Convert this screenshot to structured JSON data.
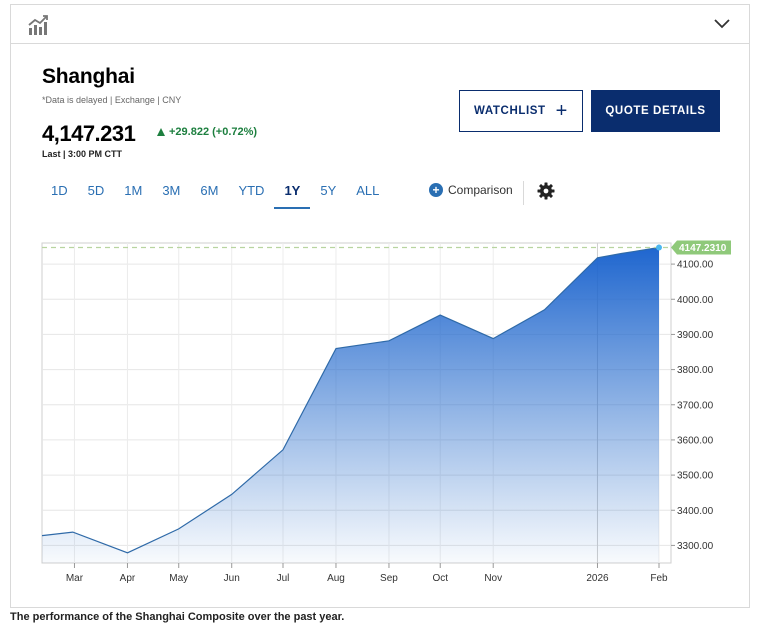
{
  "header": {
    "chart_icon": "line-chart-icon",
    "collapse_icon": "chevron-down-icon"
  },
  "quote": {
    "name": "Shanghai",
    "subtitle": "*Data is delayed | Exchange | CNY",
    "price": "4,147.231",
    "change": "+29.822 (+0.72%)",
    "last": "Last | 3:00 PM CTT",
    "change_color": "#1d7f3f"
  },
  "buttons": {
    "watchlist": "WATCHLIST",
    "quote_details": "QUOTE DETAILS"
  },
  "ranges": [
    {
      "label": "1D",
      "active": false
    },
    {
      "label": "5D",
      "active": false
    },
    {
      "label": "1M",
      "active": false
    },
    {
      "label": "3M",
      "active": false
    },
    {
      "label": "6M",
      "active": false
    },
    {
      "label": "YTD",
      "active": false
    },
    {
      "label": "1Y",
      "active": true
    },
    {
      "label": "5Y",
      "active": false
    },
    {
      "label": "ALL",
      "active": false
    }
  ],
  "comparison_label": "Comparison",
  "caption": "The performance of the Shanghai Composite over the past year.",
  "chart_data": {
    "type": "area",
    "title": "",
    "xlabel": "",
    "ylabel": "",
    "x_tick_labels": [
      "Mar",
      "Apr",
      "May",
      "Jun",
      "Jul",
      "Aug",
      "Sep",
      "Oct",
      "Nov",
      "2026",
      "Feb"
    ],
    "y_ticks": [
      3300,
      3400,
      3500,
      3600,
      3700,
      3800,
      3900,
      4000,
      4100
    ],
    "y_tick_labels": [
      "3300.00",
      "3400.00",
      "3500.00",
      "3600.00",
      "3700.00",
      "3800.00",
      "3900.00",
      "4000.00",
      "4100.00"
    ],
    "ylim": [
      3250,
      4160
    ],
    "current_value": 4147.231,
    "current_label": "4147.2310",
    "x": [
      "2025-02-10",
      "2025-02-28",
      "2025-04-01",
      "2025-05-01",
      "2025-06-01",
      "2025-07-01",
      "2025-08-01",
      "2025-09-01",
      "2025-10-01",
      "2025-11-01",
      "2025-12-01",
      "2026-01-01",
      "2026-01-15",
      "2026-02-06"
    ],
    "values": [
      3328,
      3338,
      3279,
      3347,
      3445,
      3572,
      3860,
      3882,
      3955,
      3888,
      3970,
      4118,
      4130,
      4147.231
    ],
    "series_color": "#2a6fc9",
    "grid": true,
    "legend": "none"
  }
}
